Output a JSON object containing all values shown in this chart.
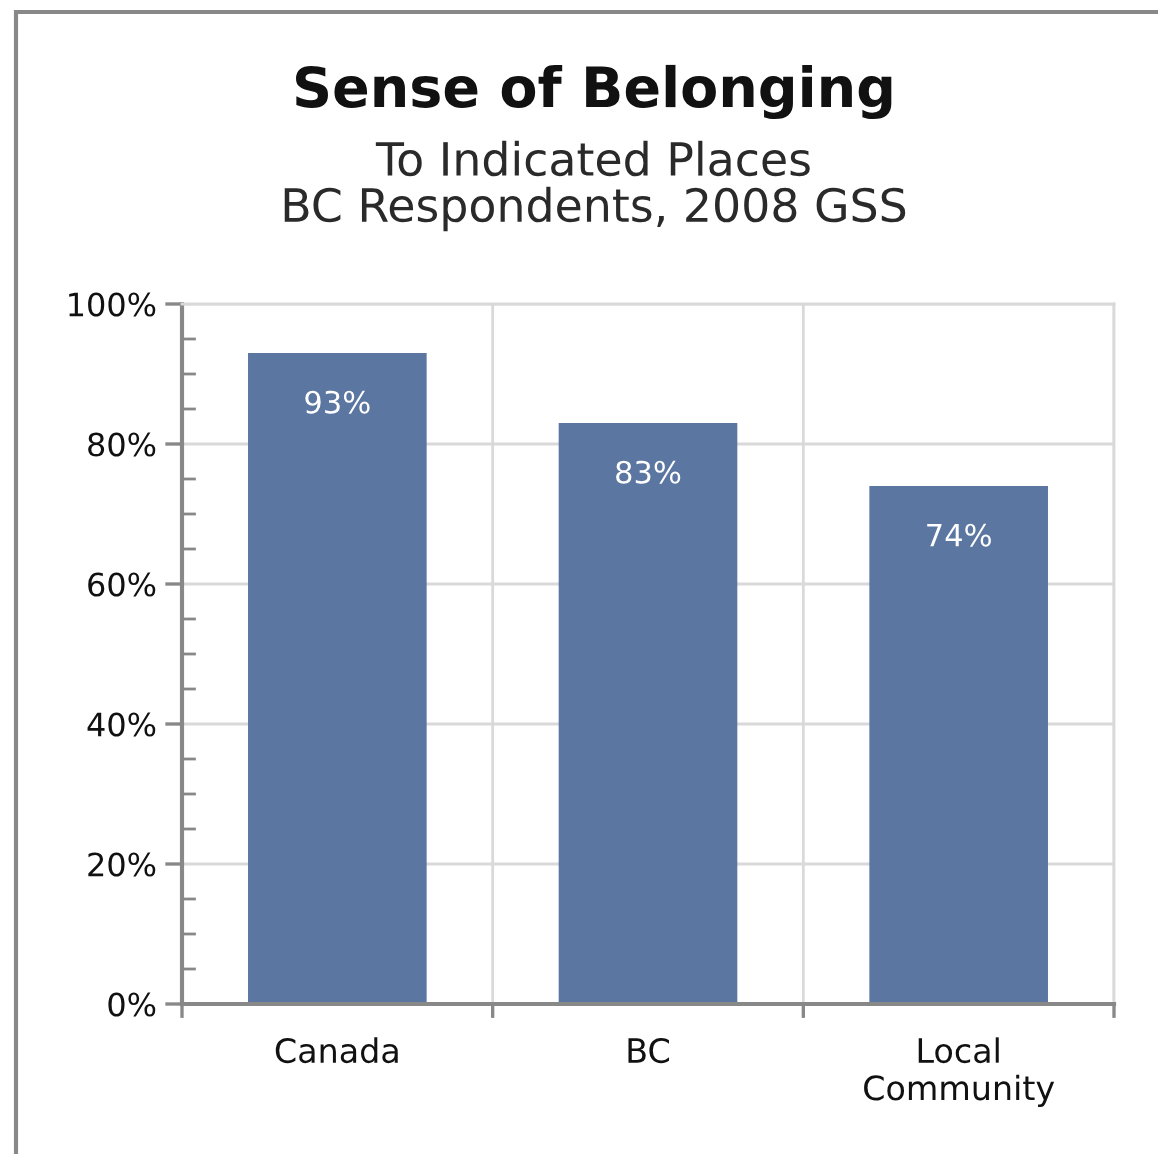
{
  "chart_data": {
    "type": "bar",
    "title": "Sense of Belonging",
    "subtitle": "To Indicated Places\nBC Respondents, 2008 GSS",
    "categories": [
      "Canada",
      "BC",
      "Local\nCommunity"
    ],
    "values": [
      93,
      83,
      74
    ],
    "color": "#5b77a1",
    "value_labels": [
      "93%",
      "83%",
      "74%"
    ],
    "ylim": [
      0,
      100
    ],
    "yticks": [
      {
        "value": 0,
        "label": "0%"
      },
      {
        "value": 20,
        "label": "20%"
      },
      {
        "value": 40,
        "label": "40%"
      },
      {
        "value": 60,
        "label": "60%"
      },
      {
        "value": 80,
        "label": "80%"
      },
      {
        "value": 100,
        "label": "100%"
      }
    ],
    "grid": true
  }
}
